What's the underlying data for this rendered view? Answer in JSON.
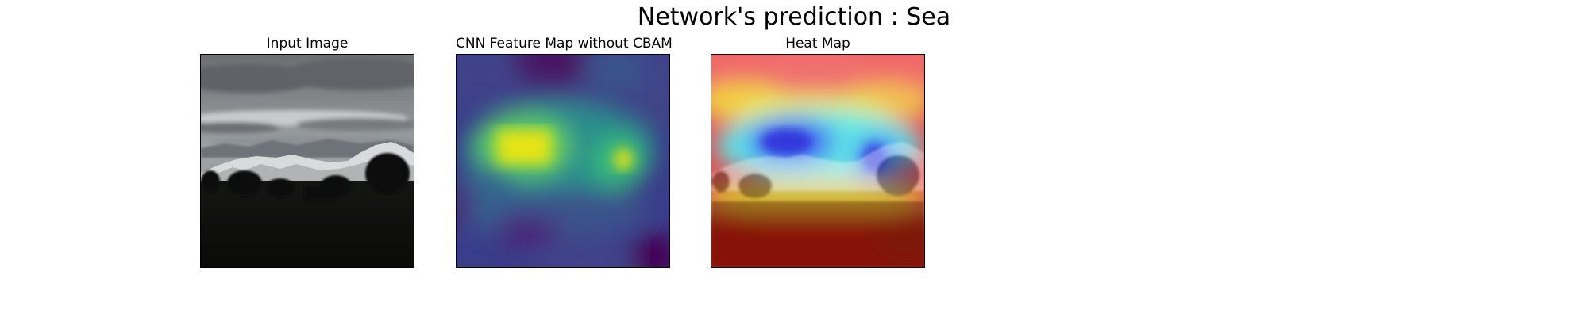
{
  "figure": {
    "suptitle": "Network's prediction : Sea",
    "panels": [
      {
        "title": "Input Image",
        "image": "grayscale landscape photo with cloudy sky, snowy mountains and dark foreground trees"
      },
      {
        "title": "CNN Feature Map without CBAM",
        "image": "viridis colormap feature activation map"
      },
      {
        "title": "Heat Map",
        "image": "jet colormap heat map overlaid on landscape photo"
      }
    ]
  }
}
